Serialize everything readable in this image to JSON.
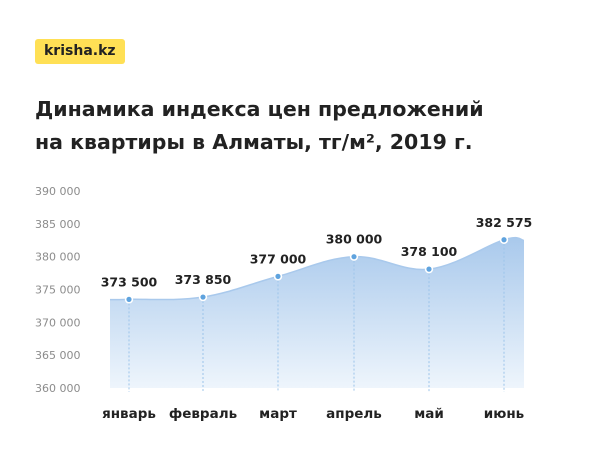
{
  "brand": {
    "logo_text": "krisha.kz",
    "logo_color": "#ffe055"
  },
  "chart_data": {
    "type": "area",
    "title_lines": [
      "Динамика индекса цен предложений",
      "на квартиры в Алматы, тг/м², 2019 г."
    ],
    "categories": [
      "январь",
      "февраль",
      "март",
      "апрель",
      "май",
      "июнь"
    ],
    "values": [
      373500,
      373850,
      377000,
      380000,
      378100,
      382575
    ],
    "data_labels": [
      "373 500",
      "373 850",
      "377 000",
      "380 000",
      "378 100",
      "382 575"
    ],
    "y_ticks": [
      360000,
      365000,
      370000,
      375000,
      380000,
      385000,
      390000
    ],
    "y_tick_labels": [
      "360 000",
      "365 000",
      "370 000",
      "375 000",
      "380 000",
      "385 000",
      "390 000"
    ],
    "ylim": [
      360000,
      390000
    ],
    "grid": false,
    "colors": {
      "fill_top": "#a9c9ec",
      "fill_bottom": "#eef5fc",
      "line": "#a9c9ec",
      "marker": "#5fa3de"
    }
  }
}
